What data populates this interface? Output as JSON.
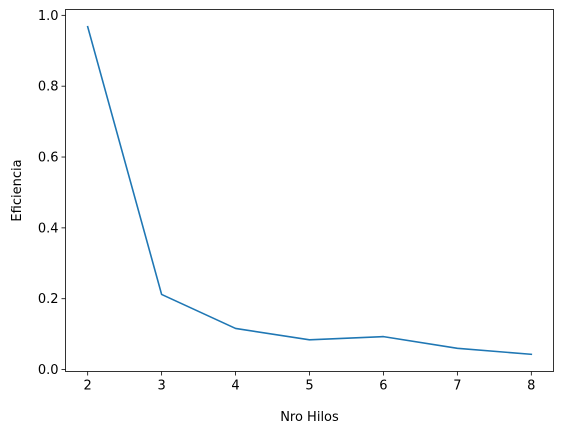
{
  "chart_data": {
    "type": "line",
    "title": "",
    "xlabel": "Nro Hilos",
    "ylabel": "Eficiencia",
    "x": [
      2,
      3,
      4,
      5,
      6,
      7,
      8
    ],
    "series": [
      {
        "values": [
          0.968,
          0.212,
          0.116,
          0.084,
          0.093,
          0.06,
          0.043
        ],
        "color": "#1f77b4"
      }
    ],
    "xlim": [
      1.7,
      8.3
    ],
    "ylim": [
      -0.0055,
      1.0165
    ],
    "xticks": [
      2,
      3,
      4,
      5,
      6,
      7,
      8
    ],
    "xtick_labels": [
      "2",
      "3",
      "4",
      "5",
      "6",
      "7",
      "8"
    ],
    "yticks": [
      0.0,
      0.2,
      0.4,
      0.6,
      0.8,
      1.0
    ],
    "ytick_labels": [
      "0.0",
      "0.2",
      "0.4",
      "0.6",
      "0.8",
      "1.0"
    ],
    "grid": false,
    "legend": "none"
  }
}
